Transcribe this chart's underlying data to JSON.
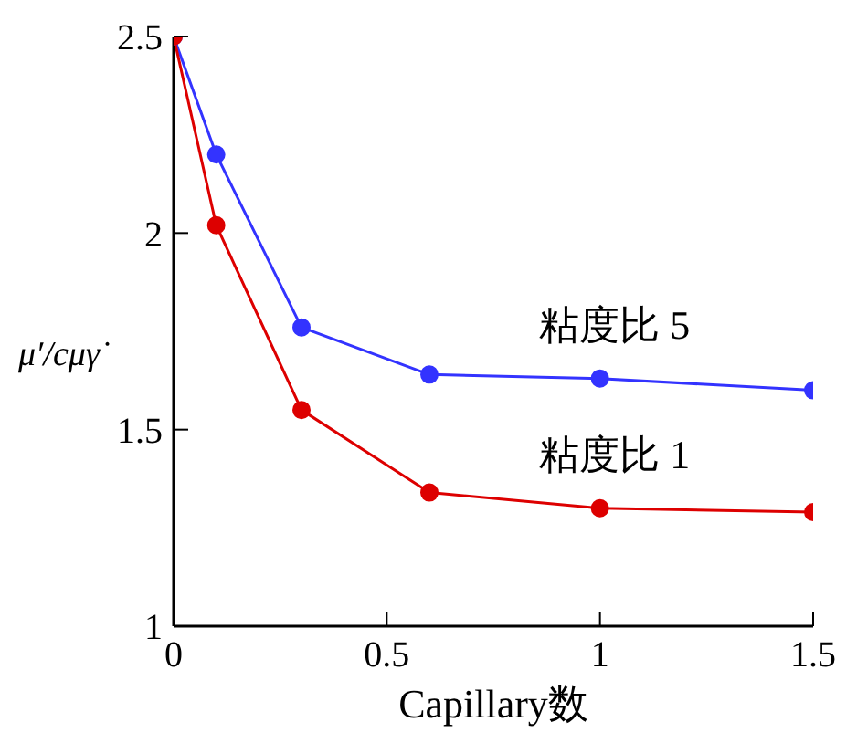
{
  "chart_data": {
    "type": "line",
    "xlabel": "Capillary数",
    "ylabel": "μ′/cμγ̇",
    "x": [
      0,
      0.1,
      0.3,
      0.6,
      1,
      1.5
    ],
    "series": [
      {
        "name": "粘度比 5",
        "color": "#3333ff",
        "values": [
          2.5,
          2.2,
          1.76,
          1.64,
          1.63,
          1.6
        ]
      },
      {
        "name": "粘度比 1",
        "color": "#dd0000",
        "values": [
          2.5,
          2.02,
          1.55,
          1.34,
          1.3,
          1.29
        ]
      }
    ],
    "xlim": [
      0,
      1.5
    ],
    "xticks": [
      0,
      0.5,
      1,
      1.5
    ],
    "ylim": [
      1,
      2.5
    ],
    "yticks": [
      1,
      1.5,
      2,
      2.5
    ],
    "grid": false,
    "legend": false,
    "marker": "circle",
    "line_style": "solid"
  }
}
